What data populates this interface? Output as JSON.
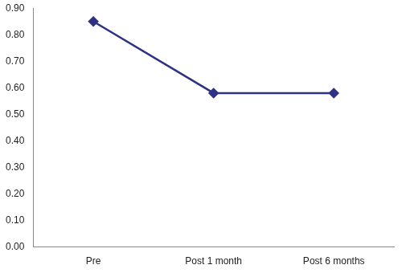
{
  "chart_data": {
    "type": "line",
    "categories": [
      "Pre",
      "Post 1 month",
      "Post 6 months"
    ],
    "values": [
      0.85,
      0.58,
      0.58
    ],
    "color": "#2e3184",
    "marker": "diamond",
    "line_style": "solid",
    "ylim": [
      0,
      0.9
    ],
    "yticks": [
      {
        "value": 0,
        "label": "0.00"
      },
      {
        "value": 0.1,
        "label": "0.10"
      },
      {
        "value": 0.2,
        "label": "0.20"
      },
      {
        "value": 0.3,
        "label": "0.30"
      },
      {
        "value": 0.4,
        "label": "0.40"
      },
      {
        "value": 0.5,
        "label": "0.50"
      },
      {
        "value": 0.6,
        "label": "0.60"
      },
      {
        "value": 0.7,
        "label": "0.70"
      },
      {
        "value": 0.8,
        "label": "0.80"
      },
      {
        "value": 0.9,
        "label": "0.90"
      }
    ],
    "grid": false
  }
}
